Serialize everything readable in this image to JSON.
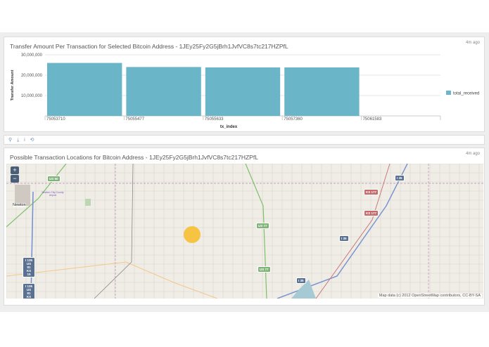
{
  "chart_panel": {
    "title": "Transfer Amount Per Transaction for Selected Bitcoin Address - 1JEy25Fy2G5jBrh1JvfVC8s7tc217HZPfL",
    "age": "4m ago"
  },
  "chart_data": {
    "type": "bar",
    "categories": [
      "75053710",
      "75055477",
      "75055633",
      "75057360",
      "75061583"
    ],
    "series": [
      {
        "name": "total_received",
        "values": [
          26000000,
          24000000,
          23800000,
          23800000,
          null
        ]
      }
    ],
    "xlabel": "tx_index",
    "ylabel": "Transfer Amount",
    "yticks": [
      "10,000,000",
      "20,000,000",
      "30,000,000"
    ],
    "ylim": [
      0,
      30000000
    ],
    "grid": true,
    "legend": "right",
    "color": "#6ab5c8"
  },
  "toolbar": {
    "icons": [
      "search-icon",
      "download-icon",
      "info-icon",
      "refresh-icon"
    ],
    "glyphs": [
      "⚲",
      "⤓",
      "i",
      "⟲"
    ]
  },
  "map_panel": {
    "title": "Possible Transaction Locations for Bitcoin Address - 1JEy25Fy2G5jBrh1JvfVC8s7tc217HZPfL",
    "age": "4m ago",
    "zoom_in": "+",
    "zoom_out": "−",
    "attribution": "Map data (c) 2012 OpenStreetMap contributors, CC-BY-SA",
    "labels": {
      "city": "Newton",
      "airport": "Newton City-County Airport",
      "us50": "US 50",
      "us77a": "US 77",
      "us77b": "US 77",
      "ks177a": "KS 177",
      "ks177b": "KS 177",
      "i35a": "I 35",
      "i35b": "I 35",
      "i35c": "I 35",
      "shield1": "I 135 US 81 KS 15",
      "shield2": "I 135 US 81 KS 15"
    },
    "marker_color": "#f5c13a"
  }
}
